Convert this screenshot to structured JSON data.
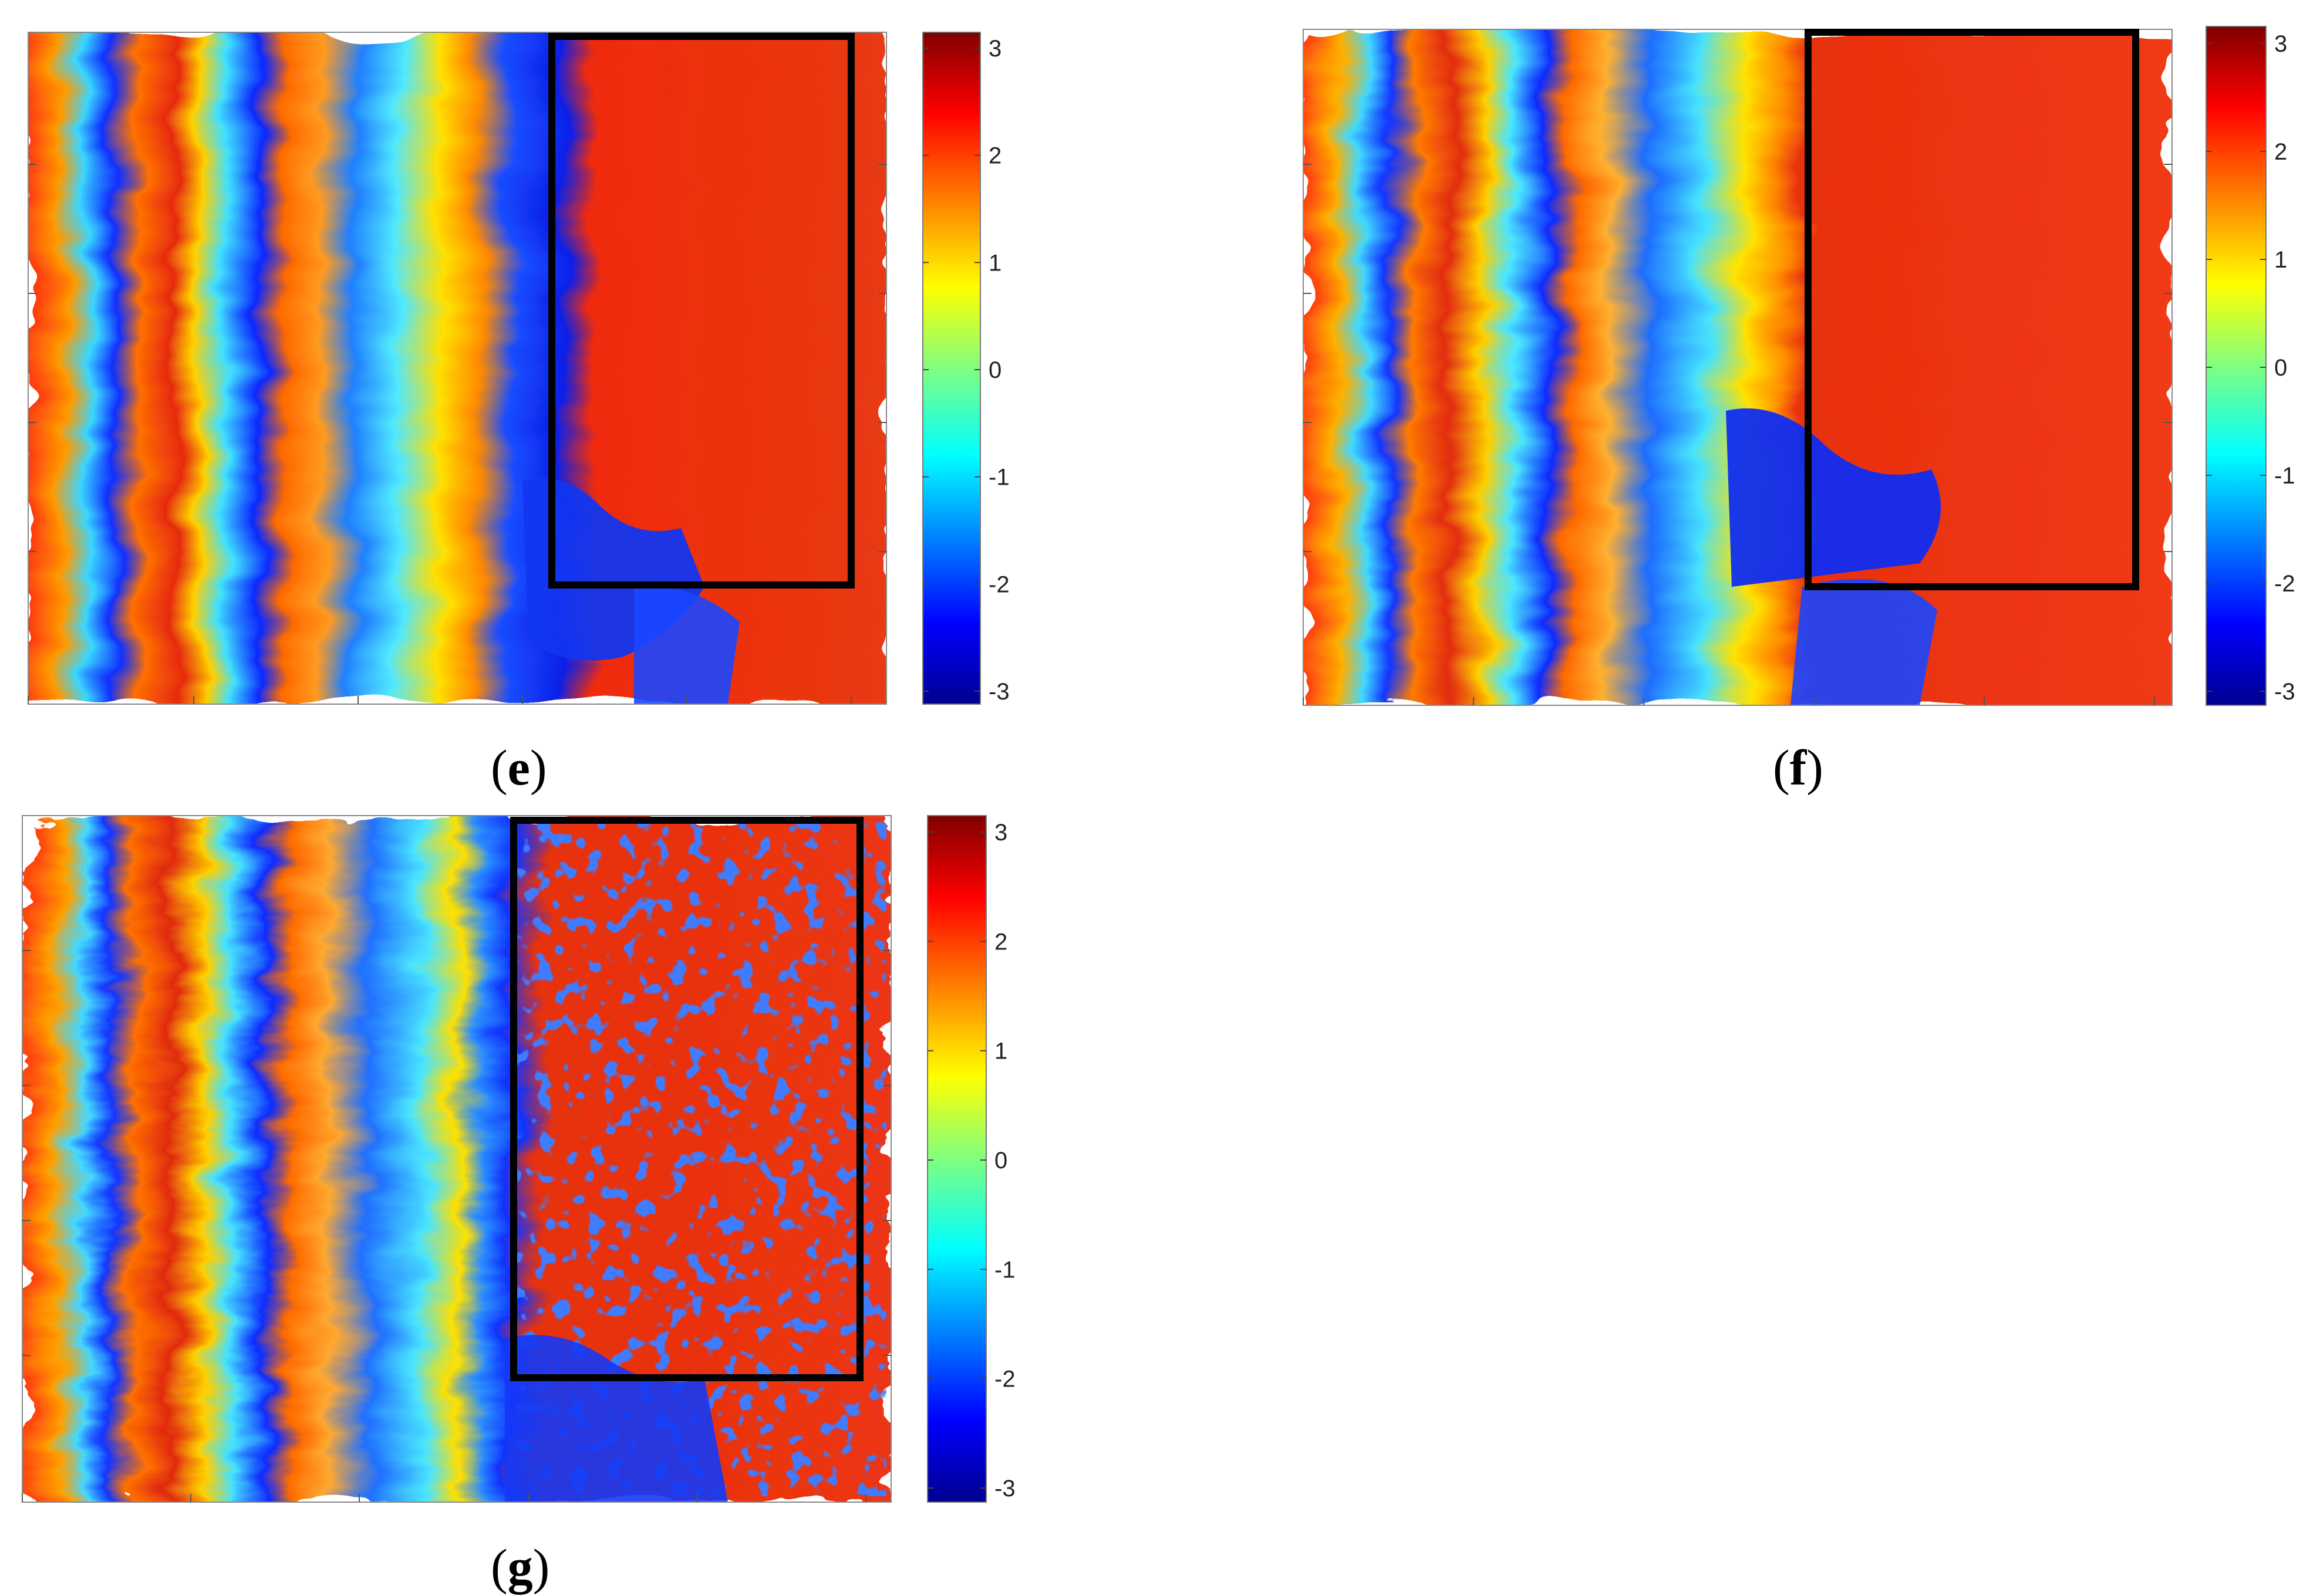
{
  "figure": {
    "panels": [
      {
        "id": "e",
        "caption_open": "(",
        "caption_letter": "e",
        "caption_close": ")"
      },
      {
        "id": "f",
        "caption_open": "(",
        "caption_letter": "f",
        "caption_close": ")"
      },
      {
        "id": "g",
        "caption_open": "(",
        "caption_letter": "g",
        "caption_close": ")"
      }
    ],
    "colorbar_ticks": [
      "3",
      "2",
      "1",
      "0",
      "-1",
      "-2",
      "-3"
    ],
    "colormap": [
      "#00008f",
      "#0000ff",
      "#0080ff",
      "#00ffff",
      "#80ff80",
      "#ffff00",
      "#ff8000",
      "#ff0000",
      "#800000"
    ],
    "region_box_color": "#000000"
  }
}
